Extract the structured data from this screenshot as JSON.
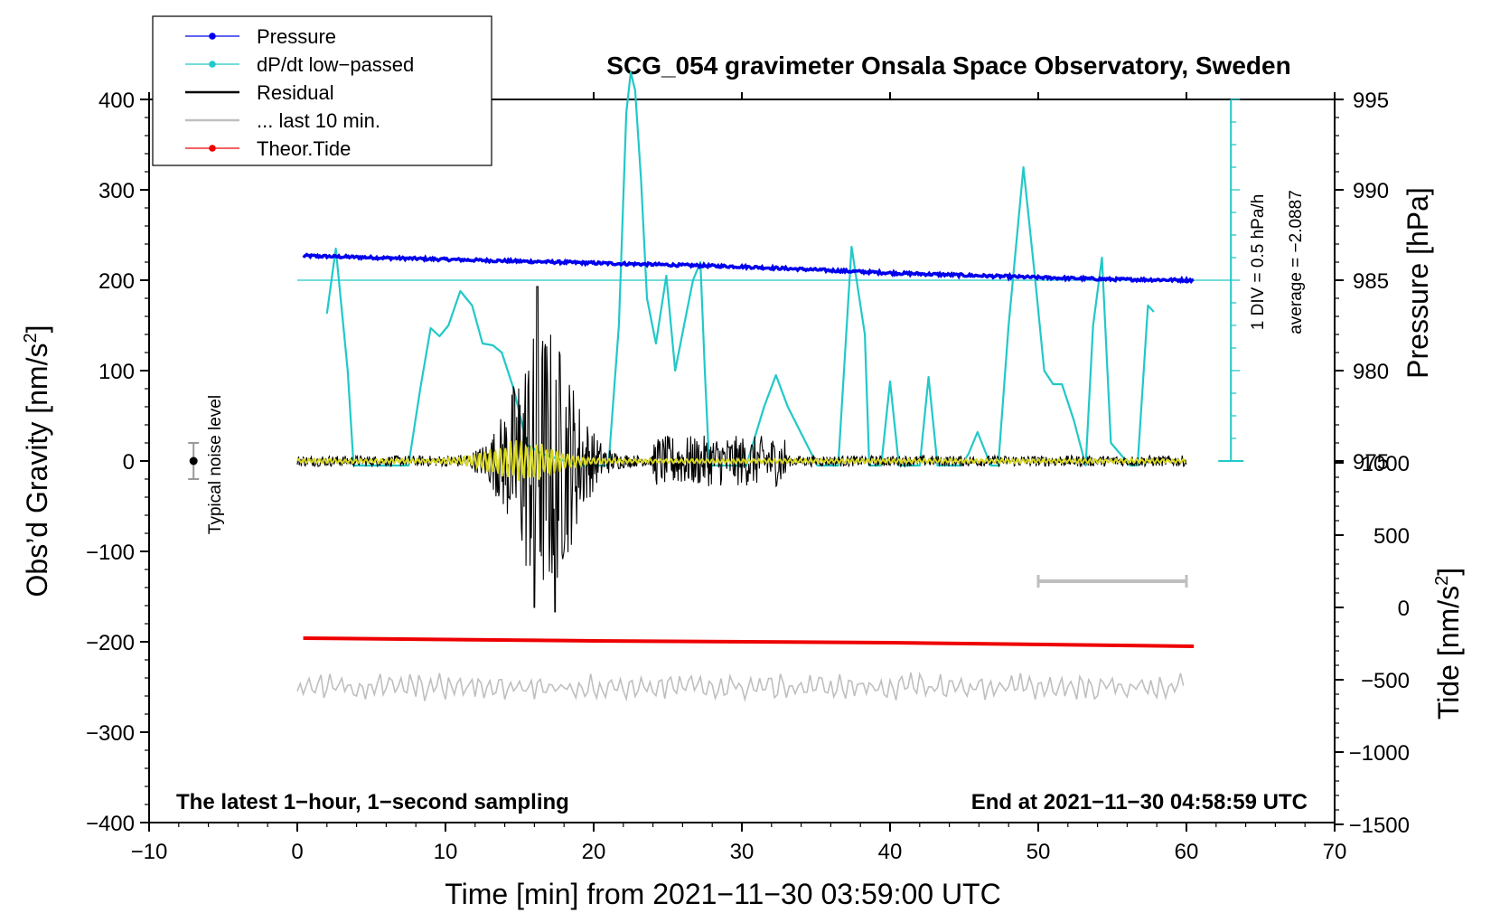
{
  "chart_data": {
    "type": "line",
    "title": "SCG_054 gravimeter Onsala Space Observatory, Sweden",
    "xlabel": "Time [min] from 2021−11−30 03:59:00 UTC",
    "ylabel": "Obs’d Gravity [nm/s",
    "ylabel_sup": "2",
    "ylabel_close": "]",
    "y2label": "Pressure [hPa]",
    "y3label": "Tide [nm/s",
    "y3label_sup": "2",
    "y3label_close": "]",
    "xlim": [
      -10,
      70
    ],
    "ylim": [
      -400,
      400
    ],
    "xticks": [
      -10,
      0,
      10,
      20,
      30,
      40,
      50,
      60,
      70
    ],
    "xtick_labels": [
      "−10",
      "0",
      "10",
      "20",
      "30",
      "40",
      "50",
      "60",
      "70"
    ],
    "yticks": [
      -400,
      -300,
      -200,
      -100,
      0,
      100,
      200,
      300,
      400
    ],
    "ytick_labels": [
      "−400",
      "−300",
      "−200",
      "−100",
      "0",
      "100",
      "200",
      "300",
      "400"
    ],
    "pressure_axis": {
      "ticks": [
        975,
        980,
        985,
        990,
        995
      ],
      "tick_labels": [
        "975",
        "980",
        "985",
        "990",
        "995"
      ],
      "gravity_equiv": [
        -200,
        200
      ]
    },
    "tide_axis": {
      "ticks": [
        -1500,
        -1000,
        -500,
        0,
        500,
        1000
      ],
      "tick_labels": [
        "−1500",
        "−1000",
        "−500",
        "0",
        "500",
        "1000"
      ],
      "gravity_equiv": [
        -400,
        0
      ]
    },
    "legend": {
      "position": "top-left",
      "entries": [
        {
          "label": "Pressure",
          "color": "#0000ee",
          "marker": true
        },
        {
          "label": "dP/dt low−passed",
          "color": "#22c8c8",
          "marker": true
        },
        {
          "label": "Residual",
          "color": "#000000",
          "marker": false
        },
        {
          "label": "... last 10 min.",
          "color": "#bfbfbf",
          "marker": false
        },
        {
          "label": "Theor.Tide",
          "color": "#ee0000",
          "marker": true
        }
      ]
    },
    "series": [
      {
        "name": "Pressure",
        "color": "#0000ee",
        "x": [
          0.4,
          10,
          20,
          30,
          40,
          50,
          55,
          60.5
        ],
        "y": [
          227,
          223,
          219,
          215,
          208,
          203,
          201,
          200
        ]
      },
      {
        "name": "dP/dt low-passed",
        "color": "#22c8c8",
        "x": [
          2.0,
          2.6,
          3.4,
          3.8,
          7.5,
          8.3,
          9.0,
          9.6,
          10.2,
          11.0,
          11.8,
          12.5,
          13.2,
          13.8,
          14.6,
          15.5,
          16.5,
          19.0,
          21.0,
          21.7,
          22.2,
          22.5,
          22.8,
          23.2,
          23.6,
          24.2,
          24.9,
          25.5,
          26.1,
          26.7,
          27.2,
          27.5,
          27.8,
          28.2,
          30.3,
          31.5,
          32.3,
          33.1,
          35.1,
          36.5,
          37.4,
          38.3,
          38.6,
          39.4,
          40.0,
          40.6,
          42.0,
          42.6,
          43.2,
          44.8,
          45.3,
          45.9,
          46.8,
          47.3,
          48.0,
          49.0,
          49.8,
          50.4,
          51.0,
          51.6,
          52.4,
          53.2,
          53.7,
          54.3,
          54.9,
          56.2,
          56.7,
          57.4,
          57.8
        ],
        "y": [
          163,
          235,
          100,
          -5,
          -5,
          80,
          147,
          138,
          150,
          188,
          172,
          130,
          128,
          120,
          80,
          18,
          8,
          -5,
          -5,
          150,
          385,
          430,
          410,
          310,
          180,
          130,
          205,
          100,
          150,
          200,
          220,
          100,
          -5,
          -5,
          -5,
          60,
          95,
          60,
          -5,
          -5,
          237,
          140,
          -5,
          -5,
          88,
          -5,
          -5,
          93,
          -5,
          -5,
          8,
          32,
          -5,
          -5,
          150,
          325,
          200,
          100,
          85,
          85,
          45,
          -5,
          150,
          225,
          20,
          -5,
          -5,
          172,
          165
        ]
      },
      {
        "name": "Residual",
        "color": "#000000",
        "x_range": [
          0,
          60
        ],
        "y_range": [
          -167,
          193
        ]
      },
      {
        "name": "... last 10 min.",
        "color": "#bfbfbf",
        "x_range": [
          0,
          60
        ],
        "y_center": -250,
        "y_range": [
          -265,
          -225
        ]
      },
      {
        "name": "Theor.Tide",
        "color": "#ee0000",
        "x": [
          0.4,
          20,
          40,
          60.5
        ],
        "y": [
          -196,
          -199,
          -201,
          -205
        ]
      }
    ],
    "dpdt_reference_line": {
      "y": 200,
      "x_range": [
        0,
        63
      ]
    },
    "annotations": {
      "scale_note": "1 DIV = 0.5 hPa/h",
      "average_note": "average = −2.0887",
      "noise_label": "Typical noise level",
      "latest_note": "The latest 1−hour, 1−second sampling",
      "end_note": "End at 2021−11−30 04:58:59 UTC"
    }
  }
}
